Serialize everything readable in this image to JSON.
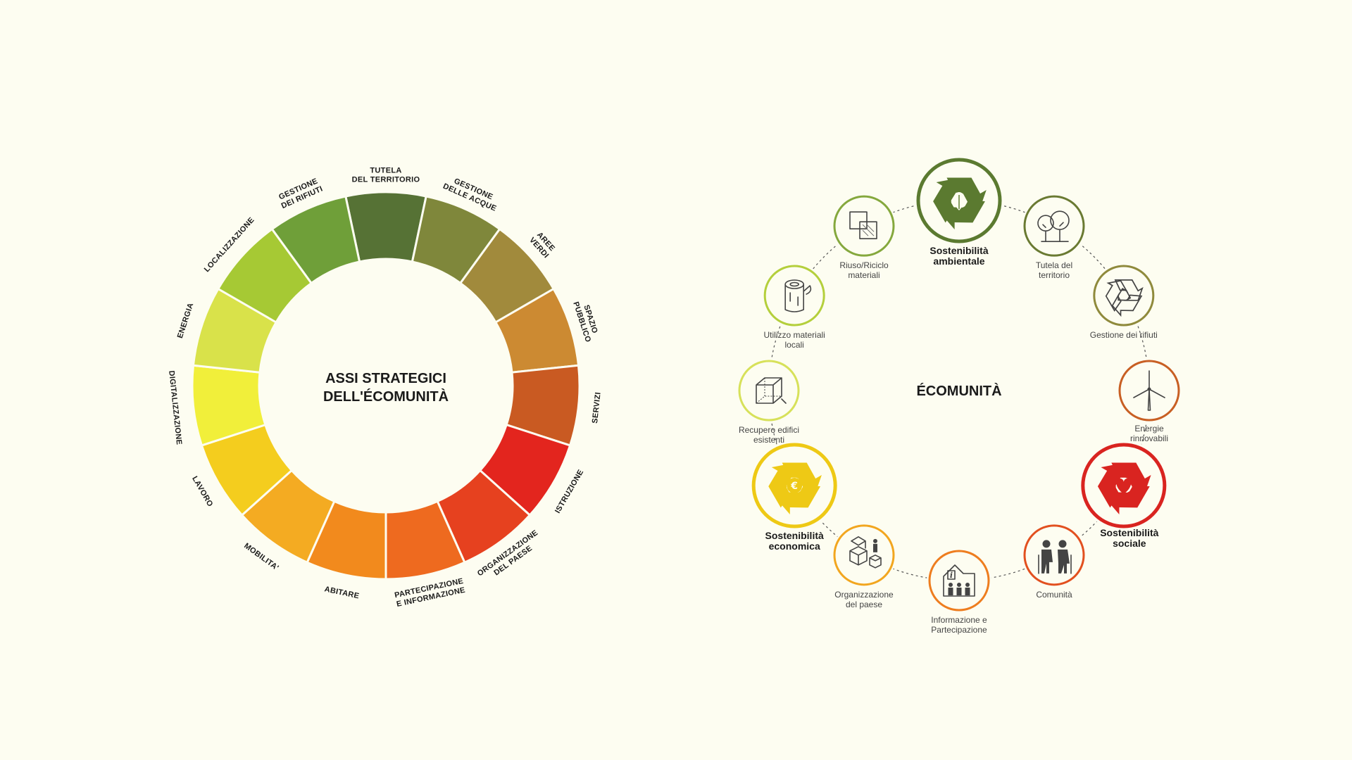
{
  "wheel": {
    "center_line1": "ASSI STRATEGICI",
    "center_line2": "DELL'ÉCOMUNITÀ",
    "segments": [
      {
        "lines": [
          "TUTELA",
          "DEL TERRITORIO"
        ],
        "color": "#567235"
      },
      {
        "lines": [
          "GESTIONE",
          "DELLE ACQUE"
        ],
        "color": "#7f873b"
      },
      {
        "lines": [
          "AREE",
          "VERDI"
        ],
        "color": "#a18a3c"
      },
      {
        "lines": [
          "SPAZIO",
          "PUBBLICO"
        ],
        "color": "#cc8a32"
      },
      {
        "lines": [
          "SERVIZI"
        ],
        "color": "#c95a22"
      },
      {
        "lines": [
          "ISTRUZIONE"
        ],
        "color": "#e3251e"
      },
      {
        "lines": [
          "ORGANIZZAZIONE",
          "DEL PAESE"
        ],
        "color": "#e6411f"
      },
      {
        "lines": [
          "PARTECIPAZIONE",
          "E INFORMAZIONE"
        ],
        "color": "#ee6a1f"
      },
      {
        "lines": [
          "ABITARE"
        ],
        "color": "#f28a1d"
      },
      {
        "lines": [
          "MOBILITA'"
        ],
        "color": "#f4ab22"
      },
      {
        "lines": [
          "LAVORO"
        ],
        "color": "#f4cd1e"
      },
      {
        "lines": [
          "DIGITALIZZAZIONE"
        ],
        "color": "#f1ef3a"
      },
      {
        "lines": [
          "ENERGIA"
        ],
        "color": "#d9e24a"
      },
      {
        "lines": [
          "LOCALIZZAZIONE"
        ],
        "color": "#a6c934"
      },
      {
        "lines": [
          "GESTIONE",
          "DEI RIFIUTI"
        ],
        "color": "#6f9f39"
      }
    ]
  },
  "ecomunita": {
    "title": "ÉCOMUNITÀ",
    "nodes": [
      {
        "id": "sost-ambientale",
        "icon": "recycle-leaf-icon",
        "big": true,
        "color": "#5b7a30",
        "lines": [
          "Sostenibilità",
          "ambientale"
        ]
      },
      {
        "id": "tutela-territorio",
        "icon": "trees-icon",
        "big": false,
        "color": "#6a7a32",
        "lines": [
          "Tutela del",
          "territorio"
        ]
      },
      {
        "id": "gestione-rifiuti",
        "icon": "recycle-icon",
        "big": false,
        "color": "#8f8a3c",
        "lines": [
          "Gestione dei rifiuti"
        ]
      },
      {
        "id": "energie-rinnovabili",
        "icon": "wind-turbine-icon",
        "big": false,
        "color": "#c85f23",
        "lines": [
          "Energie",
          "rinnovabili"
        ]
      },
      {
        "id": "sost-sociale",
        "icon": "recycle-heart-icon",
        "big": true,
        "color": "#d92420",
        "lines": [
          "Sostenibilità",
          "sociale"
        ]
      },
      {
        "id": "comunita",
        "icon": "elderly-couple-icon",
        "big": false,
        "color": "#e2501f",
        "lines": [
          "Comunità"
        ]
      },
      {
        "id": "informazione",
        "icon": "info-house-icon",
        "big": false,
        "color": "#ee7d1f",
        "lines": [
          "Informazione e",
          "Partecipazione"
        ]
      },
      {
        "id": "organizzazione",
        "icon": "boxes-person-icon",
        "big": false,
        "color": "#f2a61f",
        "lines": [
          "Organizzazione",
          "del paese"
        ]
      },
      {
        "id": "sost-economica",
        "icon": "recycle-euro-icon",
        "big": true,
        "color": "#eec915",
        "lines": [
          "Sostenibilità",
          "economica"
        ]
      },
      {
        "id": "recupero-edifici",
        "icon": "cube-icon",
        "big": false,
        "color": "#d7e15a",
        "lines": [
          "Recupero edifici",
          "esistenti"
        ]
      },
      {
        "id": "materiali-locali",
        "icon": "log-icon",
        "big": false,
        "color": "#b4cf3c",
        "lines": [
          "Utilizzo materiali",
          "locali"
        ]
      },
      {
        "id": "riuso-riciclo",
        "icon": "layers-icon",
        "big": false,
        "color": "#85a83d",
        "lines": [
          "Riuso/Riciclo",
          "materiali"
        ]
      }
    ]
  }
}
